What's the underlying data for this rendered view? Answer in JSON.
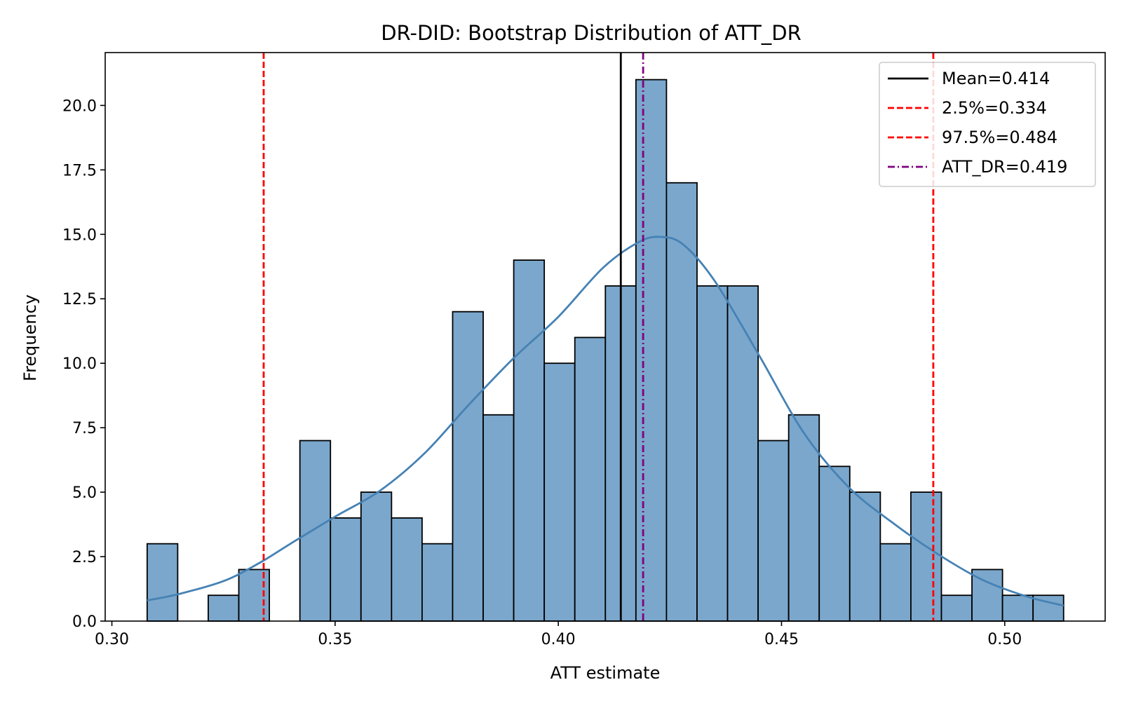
{
  "chart_data": {
    "type": "bar",
    "title": "DR-DID: Bootstrap Distribution of ATT_DR",
    "xlabel": "ATT estimate",
    "ylabel": "Frequency",
    "xlim": [
      0.2985,
      0.5225
    ],
    "ylim": [
      0,
      22.05
    ],
    "xticks": [
      "0.30",
      "0.35",
      "0.40",
      "0.45",
      "0.50"
    ],
    "xtick_values": [
      0.3,
      0.35,
      0.4,
      0.45,
      0.5
    ],
    "yticks": [
      "0.0",
      "2.5",
      "5.0",
      "7.5",
      "10.0",
      "12.5",
      "15.0",
      "17.5",
      "20.0"
    ],
    "ytick_values": [
      0,
      2.5,
      5,
      7.5,
      10,
      12.5,
      15,
      17.5,
      20
    ],
    "grid": false,
    "legend_position": "top-right",
    "bins": {
      "start": 0.3079,
      "width": 0.006843,
      "counts": [
        3,
        0,
        1,
        2,
        0,
        7,
        4,
        5,
        4,
        3,
        12,
        8,
        14,
        10,
        11,
        13,
        21,
        17,
        13,
        13,
        7,
        8,
        6,
        5,
        3,
        5,
        1,
        2,
        1,
        1
      ]
    },
    "histogram_color": "#7ba7cc",
    "kde": {
      "color": "#4682b4",
      "x": [
        0.3079,
        0.315,
        0.325,
        0.333,
        0.34,
        0.35,
        0.36,
        0.37,
        0.38,
        0.39,
        0.4,
        0.41,
        0.418,
        0.423,
        0.428,
        0.435,
        0.445,
        0.455,
        0.465,
        0.475,
        0.485,
        0.495,
        0.505,
        0.5132
      ],
      "y": [
        0.8,
        1.05,
        1.55,
        2.25,
        3.0,
        4.05,
        5.05,
        6.5,
        8.4,
        10.2,
        11.8,
        13.7,
        14.7,
        14.9,
        14.6,
        13.2,
        10.3,
        7.3,
        5.2,
        3.8,
        2.6,
        1.6,
        0.95,
        0.6
      ]
    },
    "reference_lines": [
      {
        "label": "Mean=0.414",
        "x": 0.414,
        "color": "#000000",
        "style": "solid"
      },
      {
        "label": "2.5%=0.334",
        "x": 0.334,
        "color": "#ff0000",
        "style": "dashed"
      },
      {
        "label": "97.5%=0.484",
        "x": 0.484,
        "color": "#ff0000",
        "style": "dashed"
      },
      {
        "label": "ATT_DR=0.419",
        "x": 0.419,
        "color": "#800080",
        "style": "dashdot"
      }
    ]
  }
}
